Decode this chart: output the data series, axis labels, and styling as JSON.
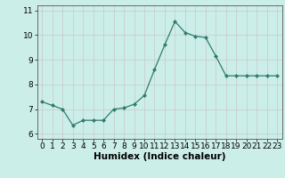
{
  "x": [
    0,
    1,
    2,
    3,
    4,
    5,
    6,
    7,
    8,
    9,
    10,
    11,
    12,
    13,
    14,
    15,
    16,
    17,
    18,
    19,
    20,
    21,
    22,
    23
  ],
  "y": [
    7.3,
    7.15,
    7.0,
    6.35,
    6.55,
    6.55,
    6.55,
    7.0,
    7.05,
    7.2,
    7.55,
    8.6,
    9.6,
    10.55,
    10.1,
    9.95,
    9.9,
    9.15,
    8.35,
    8.35,
    8.35,
    8.35,
    8.35,
    8.35
  ],
  "xlabel": "Humidex (Indice chaleur)",
  "ylim": [
    5.8,
    11.2
  ],
  "xlim": [
    -0.5,
    23.5
  ],
  "yticks": [
    6,
    7,
    8,
    9,
    10,
    11
  ],
  "xticks": [
    0,
    1,
    2,
    3,
    4,
    5,
    6,
    7,
    8,
    9,
    10,
    11,
    12,
    13,
    14,
    15,
    16,
    17,
    18,
    19,
    20,
    21,
    22,
    23
  ],
  "line_color": "#2e7d6e",
  "marker_color": "#2e7d6e",
  "bg_color": "#cceee8",
  "grid_color": "#c8c8c8",
  "tick_fontsize": 6.5,
  "xlabel_fontsize": 7.5
}
